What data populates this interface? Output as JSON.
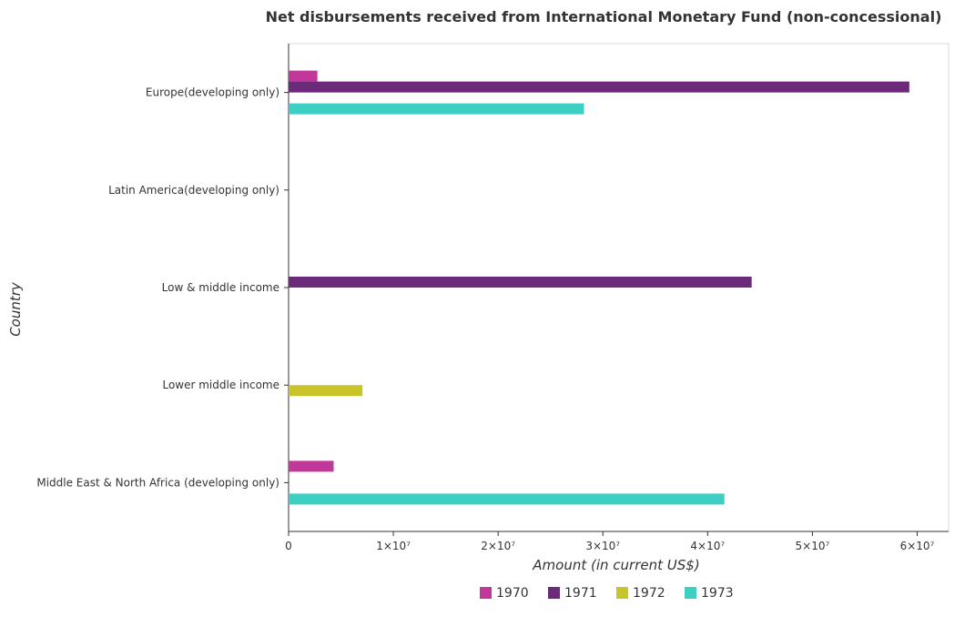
{
  "chart_data": {
    "type": "bar",
    "orientation": "horizontal",
    "title": "Net disbursements received from International Monetary Fund (non-concessional)",
    "xlabel": "Amount (in current US$)",
    "ylabel": "Country",
    "xlim": [
      0,
      63000000
    ],
    "x_ticks": [
      0,
      10000000,
      20000000,
      30000000,
      40000000,
      50000000,
      60000000
    ],
    "x_tick_labels": [
      "0",
      "1×10⁷",
      "2×10⁷",
      "3×10⁷",
      "4×10⁷",
      "5×10⁷",
      "6×10⁷"
    ],
    "categories": [
      "Europe(developing only)",
      "Latin America(developing only)",
      "Low & middle income",
      "Lower middle income",
      "Middle East & North Africa (developing only)"
    ],
    "series": [
      {
        "name": "1970",
        "color": "#c0399a",
        "values": [
          2750000,
          0,
          0,
          0,
          4300000
        ]
      },
      {
        "name": "1971",
        "color": "#6b2b7a",
        "values": [
          59250000,
          0,
          44200000,
          0,
          0
        ]
      },
      {
        "name": "1972",
        "color": "#c9c42a",
        "values": [
          0,
          0,
          0,
          7050000,
          0
        ]
      },
      {
        "name": "1973",
        "color": "#3ecfc4",
        "values": [
          28200000,
          0,
          0,
          0,
          41600000
        ]
      }
    ],
    "grid": false,
    "legend_position": "bottom"
  }
}
